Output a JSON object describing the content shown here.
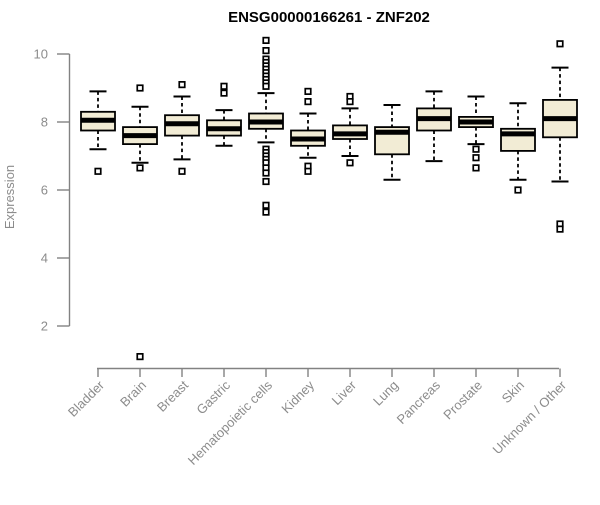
{
  "title": "ENSG00000166261 - ZNF202",
  "chart_data": {
    "type": "boxplot",
    "title": "ENSG00000166261 - ZNF202",
    "ylabel": "Expression",
    "yticks": [
      2,
      4,
      6,
      8,
      10
    ],
    "axis_drawn_range": [
      2,
      10
    ],
    "grid": false,
    "legend": "none",
    "categories": [
      "Bladder",
      "Brain",
      "Breast",
      "Gastric",
      "Hematopoietic cells",
      "Kidney",
      "Liver",
      "Lung",
      "Pancreas",
      "Prostate",
      "Skin",
      "Unknown / Other"
    ],
    "series": [
      {
        "name": "Bladder",
        "whisker_low": 7.2,
        "q1": 7.75,
        "median": 8.05,
        "q3": 8.3,
        "whisker_high": 8.9,
        "outliers": [
          6.55
        ]
      },
      {
        "name": "Brain",
        "whisker_low": 6.8,
        "q1": 7.35,
        "median": 7.6,
        "q3": 7.85,
        "whisker_high": 8.45,
        "outliers": [
          9.0,
          6.65,
          1.1
        ]
      },
      {
        "name": "Breast",
        "whisker_low": 6.9,
        "q1": 7.6,
        "median": 7.95,
        "q3": 8.2,
        "whisker_high": 8.75,
        "outliers": [
          9.1,
          6.55
        ]
      },
      {
        "name": "Gastric",
        "whisker_low": 7.3,
        "q1": 7.6,
        "median": 7.8,
        "q3": 8.05,
        "whisker_high": 8.35,
        "outliers": [
          9.05,
          8.85
        ]
      },
      {
        "name": "Hematopoietic cells",
        "whisker_low": 7.4,
        "q1": 7.8,
        "median": 8.0,
        "q3": 8.25,
        "whisker_high": 8.85,
        "outliers": [
          10.4,
          10.1,
          9.85,
          9.75,
          9.65,
          9.55,
          9.45,
          9.35,
          9.25,
          9.15,
          9.05,
          7.2,
          7.1,
          7.0,
          6.9,
          6.8,
          6.65,
          6.5,
          6.25,
          5.55,
          5.35
        ]
      },
      {
        "name": "Kidney",
        "whisker_low": 6.95,
        "q1": 7.3,
        "median": 7.5,
        "q3": 7.75,
        "whisker_high": 8.25,
        "outliers": [
          8.9,
          8.6,
          6.7,
          6.55
        ]
      },
      {
        "name": "Liver",
        "whisker_low": 7.0,
        "q1": 7.5,
        "median": 7.65,
        "q3": 7.9,
        "whisker_high": 8.4,
        "outliers": [
          8.75,
          8.6,
          6.8
        ]
      },
      {
        "name": "Lung",
        "whisker_low": 6.3,
        "q1": 7.05,
        "median": 7.7,
        "q3": 7.85,
        "whisker_high": 8.5,
        "outliers": []
      },
      {
        "name": "Pancreas",
        "whisker_low": 6.85,
        "q1": 7.75,
        "median": 8.1,
        "q3": 8.4,
        "whisker_high": 8.9,
        "outliers": []
      },
      {
        "name": "Prostate",
        "whisker_low": 7.35,
        "q1": 7.85,
        "median": 8.0,
        "q3": 8.15,
        "whisker_high": 8.75,
        "outliers": [
          7.2,
          6.95,
          6.65
        ]
      },
      {
        "name": "Skin",
        "whisker_low": 6.3,
        "q1": 7.15,
        "median": 7.65,
        "q3": 7.8,
        "whisker_high": 8.55,
        "outliers": [
          6.0
        ]
      },
      {
        "name": "Unknown / Other",
        "whisker_low": 6.25,
        "q1": 7.55,
        "median": 8.1,
        "q3": 8.65,
        "whisker_high": 9.6,
        "outliers": [
          10.3,
          5.0,
          4.85
        ]
      }
    ],
    "colors": {
      "box_fill": "#f2ecd5",
      "box_border": "#000000",
      "median": "#000000",
      "outlier_border": "#000000",
      "outlier_fill": "#ffffff",
      "axis": "#828282",
      "tick_text": "#8c8c8c",
      "title_text": "#000000",
      "background": "#ffffff"
    }
  }
}
